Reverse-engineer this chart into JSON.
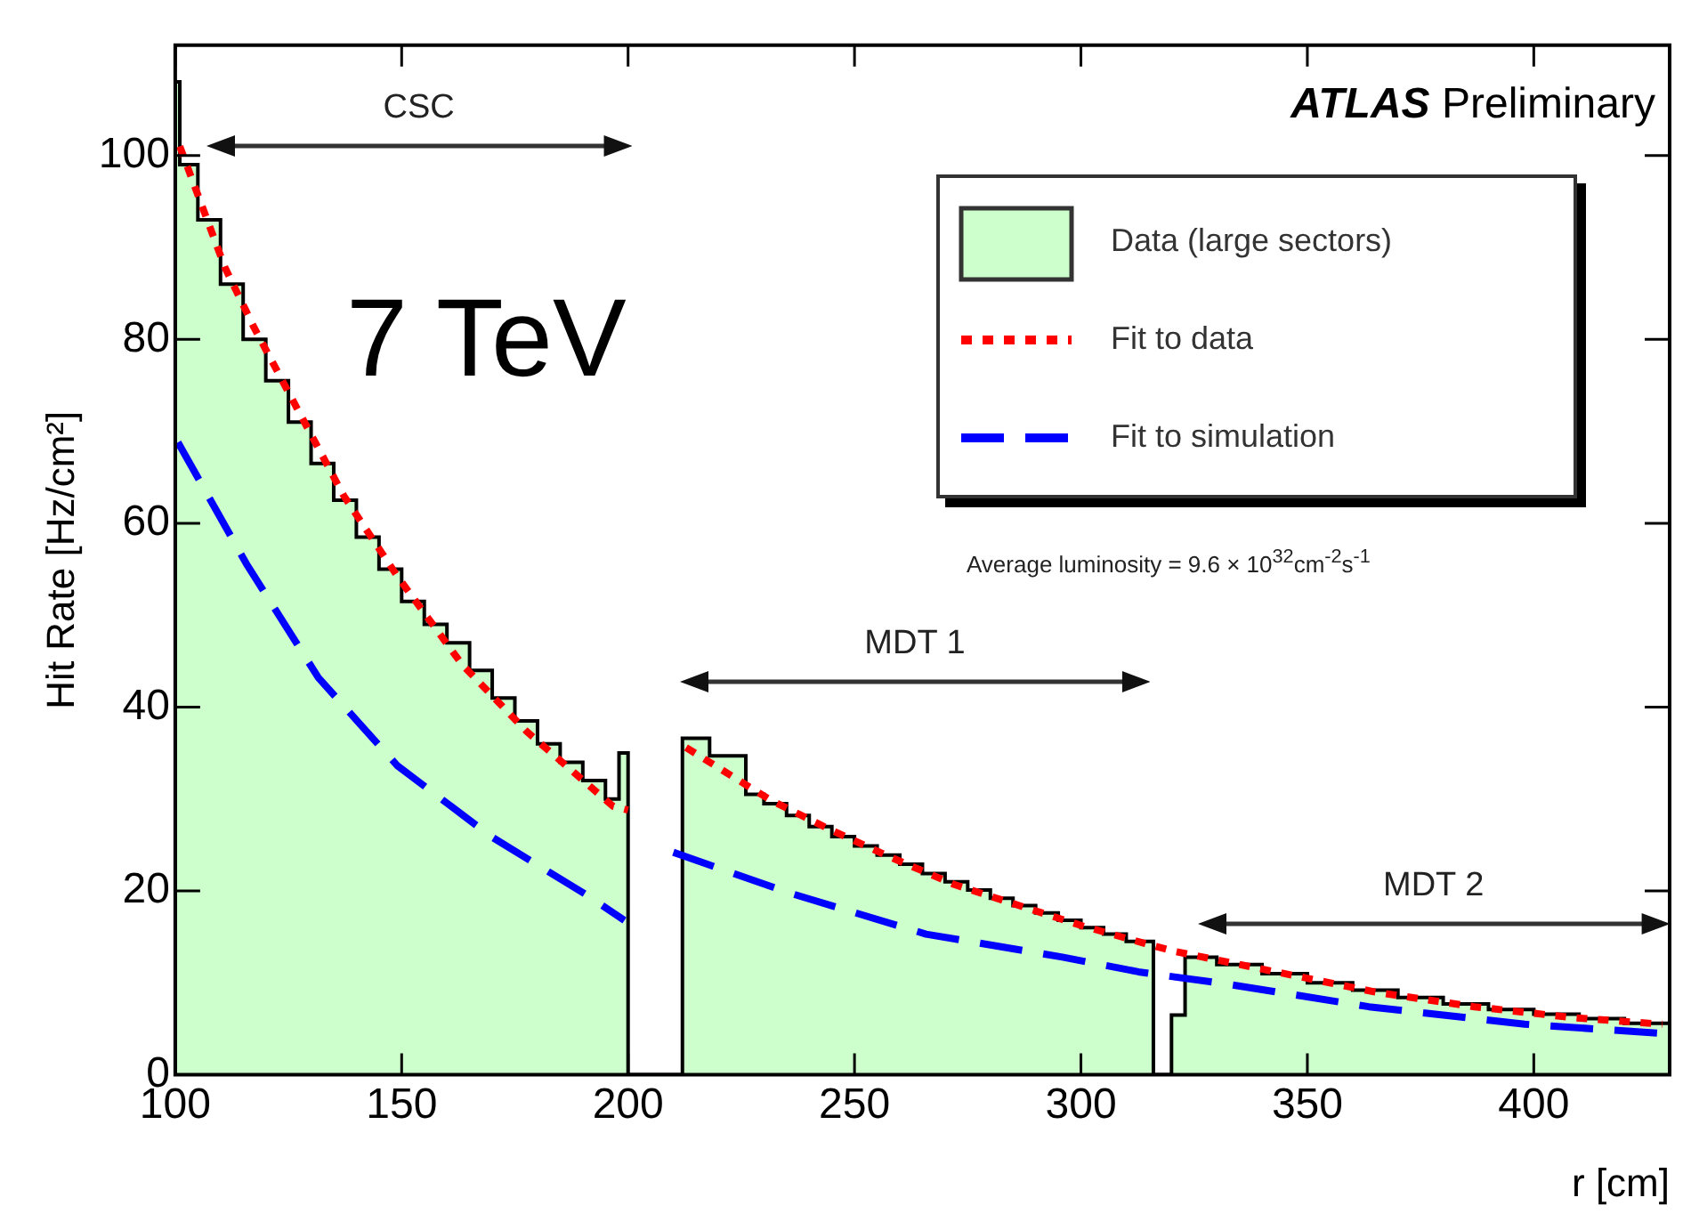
{
  "chart_data": {
    "type": "histogram",
    "xlabel": "r [cm]",
    "ylabel": "Hit Rate [Hz/cm²]",
    "xlim": [
      100,
      430
    ],
    "ylim": [
      0,
      112
    ],
    "xticks": [
      100,
      150,
      200,
      250,
      300,
      350,
      400
    ],
    "yticks": [
      0,
      20,
      40,
      60,
      80,
      100
    ],
    "legend": "top right",
    "annotations": [
      "CSC",
      "MDT 1",
      "MDT 2",
      "7 TeV",
      "ATLAS Preliminary",
      "Average luminosity = 9.6 × 10$^{32}$cm$^{-2}$s$^{-1}$"
    ],
    "series": [
      {
        "type": "histogram",
        "name": "Data (large sectors)",
        "color": "#ccffcc",
        "bins": [
          100,
          101,
          105,
          110,
          115,
          120,
          125,
          130,
          135,
          140,
          145,
          150,
          155,
          160,
          165,
          170,
          175,
          180,
          185,
          190,
          195,
          198,
          200,
          212,
          218,
          226,
          230,
          235,
          240,
          245,
          250,
          255,
          260,
          265,
          270,
          275,
          280,
          285,
          290,
          295,
          300,
          305,
          310,
          316,
          320,
          323,
          330,
          340,
          350,
          360,
          370,
          380,
          390,
          400,
          410,
          420,
          430
        ],
        "values": [
          108,
          99,
          93,
          86,
          80,
          75.5,
          71,
          66.5,
          62.5,
          58.5,
          55,
          51.5,
          49,
          47,
          44,
          41,
          38.5,
          36,
          34,
          32,
          30,
          35,
          0,
          36.6,
          34.7,
          30.5,
          29.5,
          28.2,
          27,
          25.9,
          24.9,
          23.9,
          22.9,
          21.9,
          21,
          20.1,
          19.2,
          18.4,
          17.6,
          16.8,
          16,
          15.3,
          14.5,
          0,
          6.5,
          12.8,
          12,
          11,
          10,
          9.2,
          8.4,
          7.7,
          7.1,
          6.6,
          6.1,
          5.6
        ]
      },
      {
        "type": "line",
        "name": "Fit to data",
        "color": "#ff0000",
        "line_style": "dotted",
        "x": [
          101,
          111,
          117.4,
          126.9,
          137.2,
          149.1,
          163.4,
          177.7,
          196.7,
          200,
          206,
          212.8,
          231.4,
          244.5,
          258.3,
          272,
          285.8,
          300.3,
          314,
          320.9,
          343,
          365,
          386.9,
          409,
          428.4
        ],
        "values": [
          101,
          87.8,
          81.3,
          72.5,
          63,
          54.2,
          44.6,
          37.3,
          29.2,
          28.8,
          null,
          35.6,
          29.9,
          26.7,
          23.6,
          20.7,
          18.5,
          16.2,
          14.3,
          13.4,
          11.2,
          9,
          7.4,
          6.2,
          5.5
        ]
      },
      {
        "type": "line",
        "name": "Fit to simulation",
        "color": "#0000ff",
        "line_style": "dashed",
        "x": [
          100.6,
          115.7,
          131.6,
          149.1,
          169.8,
          190.4,
          199.2,
          205,
          210,
          235.5,
          265.8,
          295.9,
          312.7,
          316.8,
          331.9,
          363.6,
          398,
          428.4
        ],
        "values": [
          68.8,
          55.6,
          43.2,
          33.6,
          25.9,
          19.7,
          16.8,
          null,
          24.2,
          19.8,
          15.3,
          12.8,
          11.2,
          10.9,
          9.9,
          7.4,
          5.5,
          4.5
        ]
      }
    ]
  }
}
